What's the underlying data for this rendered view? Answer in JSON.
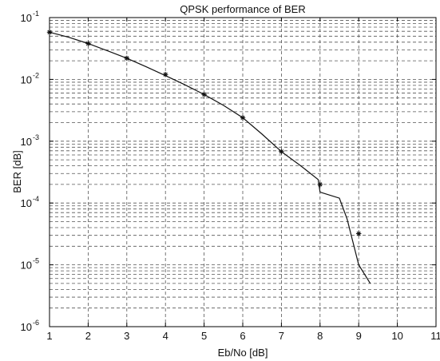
{
  "chart_data": {
    "type": "line",
    "title": "QPSK performance of BER",
    "xlabel": "Eb/No [dB]",
    "ylabel": "BER [dB]",
    "xlim": [
      1,
      11
    ],
    "ylim": [
      1e-06,
      0.1
    ],
    "yscale": "log",
    "grid": true,
    "x_ticks": [
      "1",
      "2",
      "3",
      "4",
      "5",
      "6",
      "7",
      "8",
      "9",
      "10",
      "11"
    ],
    "y_ticks": [
      {
        "base": "10",
        "exp": "-1"
      },
      {
        "base": "10",
        "exp": "-2"
      },
      {
        "base": "10",
        "exp": "-3"
      },
      {
        "base": "10",
        "exp": "-4"
      },
      {
        "base": "10",
        "exp": "-5"
      },
      {
        "base": "10",
        "exp": "-6"
      }
    ],
    "colors": {
      "line": "#111111",
      "grid": "#555555",
      "axes": "#000000"
    },
    "series": [
      {
        "style": "line",
        "x": [
          1,
          1.5,
          2,
          2.5,
          3,
          3.5,
          4,
          4.5,
          5,
          5.5,
          6,
          6.5,
          7,
          7.5,
          7.95,
          8.0,
          8.5,
          8.7,
          9.0,
          9.3
        ],
        "y": [
          0.058,
          0.048,
          0.038,
          0.029,
          0.022,
          0.016,
          0.0115,
          0.0082,
          0.0057,
          0.0038,
          0.0024,
          0.0013,
          0.00068,
          0.0004,
          0.00024,
          0.00015,
          0.00012,
          5.5e-05,
          1e-05,
          5e-06
        ]
      },
      {
        "style": "markers",
        "marker": "asterisk",
        "x": [
          1,
          2,
          3,
          4,
          5,
          6,
          7,
          8,
          9
        ],
        "y": [
          0.058,
          0.038,
          0.022,
          0.012,
          0.0057,
          0.0024,
          0.00068,
          0.0002,
          3.2e-05
        ]
      }
    ]
  }
}
